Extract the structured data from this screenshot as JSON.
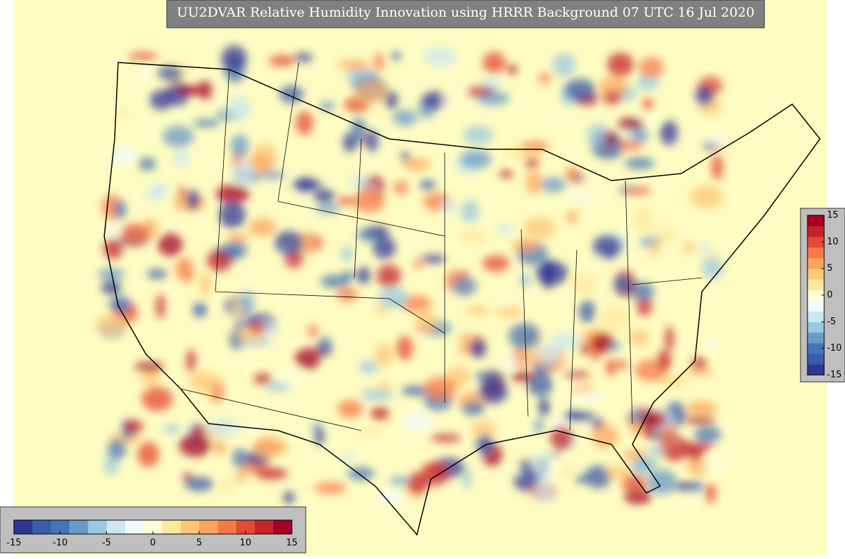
{
  "title": "UU2DVAR Relative Humidity Innovation using HRRR Background 07 UTC 16 Jul 2020",
  "colorbars": [
    {
      "orientation": "vertical",
      "range": [
        -15,
        15
      ],
      "ticks": [
        15,
        10,
        5,
        0,
        -5,
        -10,
        -15
      ],
      "colors": [
        "#313695",
        "#3b5ca8",
        "#4575b4",
        "#6a9ac8",
        "#9ac8e0",
        "#cbe7f1",
        "#f2fafd",
        "#ffffd9",
        "#fee8a0",
        "#fdc777",
        "#fca55d",
        "#f67a49",
        "#e34a33",
        "#c5232c",
        "#a50026"
      ]
    },
    {
      "orientation": "horizontal",
      "range": [
        -15,
        15
      ],
      "ticks": [
        -15,
        -10,
        -5,
        0,
        5,
        10,
        15
      ],
      "colors": [
        "#313695",
        "#3b5ca8",
        "#4575b4",
        "#6a9ac8",
        "#9ac8e0",
        "#cbe7f1",
        "#f2fafd",
        "#ffffd9",
        "#fee8a0",
        "#fdc777",
        "#fca55d",
        "#f67a49",
        "#e34a33",
        "#c5232c",
        "#a50026"
      ]
    }
  ]
}
